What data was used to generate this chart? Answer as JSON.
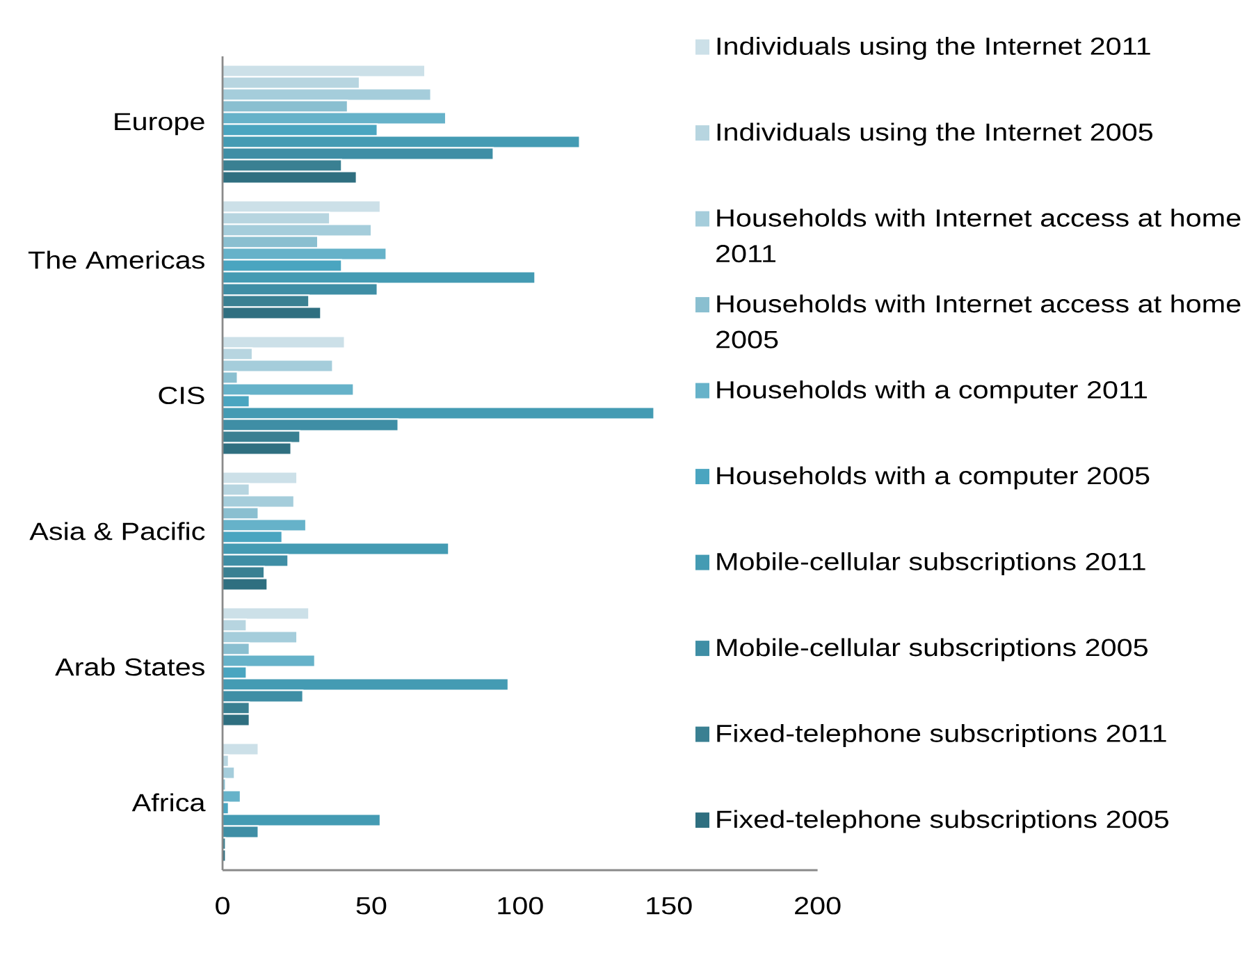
{
  "chart_data": {
    "type": "bar",
    "orientation": "horizontal",
    "categories": [
      "Europe",
      "The Americas",
      "CIS",
      "Asia & Pacific",
      "Arab States",
      "Africa"
    ],
    "series": [
      {
        "name": "Individuals using the Internet 2011",
        "color": "#cce0e8",
        "values": [
          68,
          53,
          41,
          25,
          29,
          12
        ]
      },
      {
        "name": "Individuals using the Internet 2005",
        "color": "#b7d5e0",
        "values": [
          46,
          36,
          10,
          9,
          8,
          2
        ]
      },
      {
        "name": "Households with Internet access at home 2011",
        "color": "#a5cddb",
        "values": [
          70,
          50,
          37,
          24,
          25,
          4
        ]
      },
      {
        "name": "Households with Internet access at home 2005",
        "color": "#8abfd0",
        "values": [
          42,
          32,
          5,
          12,
          9,
          1
        ]
      },
      {
        "name": "Households with a computer 2011",
        "color": "#66b2c9",
        "values": [
          75,
          55,
          44,
          28,
          31,
          6
        ]
      },
      {
        "name": "Households with a computer 2005",
        "color": "#4aa5c0",
        "values": [
          52,
          40,
          9,
          20,
          8,
          2
        ]
      },
      {
        "name": "Mobile-cellular subscriptions 2011",
        "color": "#449bb3",
        "values": [
          120,
          105,
          145,
          76,
          96,
          53
        ]
      },
      {
        "name": "Mobile-cellular subscriptions 2005",
        "color": "#3f8ea5",
        "values": [
          91,
          52,
          59,
          22,
          27,
          12
        ]
      },
      {
        "name": "Fixed-telephone subscriptions 2011",
        "color": "#3a8092",
        "values": [
          40,
          29,
          26,
          14,
          9,
          1
        ]
      },
      {
        "name": "Fixed-telephone subscriptions 2005",
        "color": "#2f6f80",
        "values": [
          45,
          33,
          23,
          15,
          9,
          1
        ]
      }
    ],
    "xlim": [
      0,
      200
    ],
    "xticks": [
      0,
      50,
      100,
      150,
      200
    ],
    "legend": "right"
  }
}
